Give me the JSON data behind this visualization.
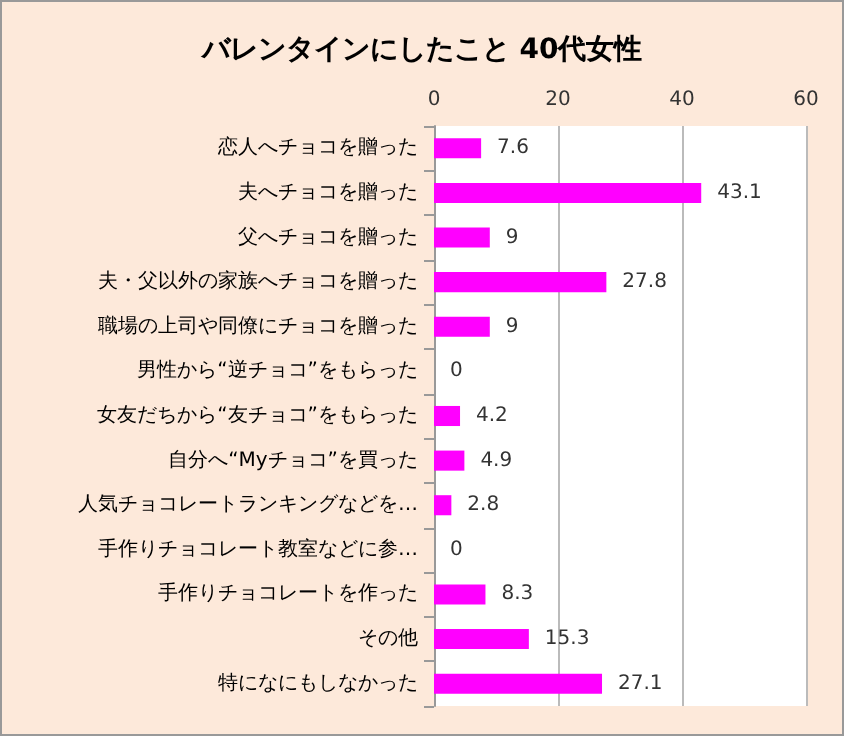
{
  "chart_data": {
    "type": "bar",
    "orientation": "horizontal",
    "title": "バレンタインにしたこと 40代女性",
    "categories": [
      "恋人へチョコを贈った",
      "夫へチョコを贈った",
      "父へチョコを贈った",
      "夫・父以外の家族へチョコを贈った",
      "職場の上司や同僚にチョコを贈った",
      "男性から“逆チョコ”をもらった",
      "女友だちから“友チョコ”をもらった",
      "自分へ“Myチョコ”を買った",
      "人気チョコレートランキングなどを…",
      "手作りチョコレート教室などに参…",
      "手作りチョコレートを作った",
      "その他",
      "特になにもしなかった"
    ],
    "values": [
      7.6,
      43.1,
      9,
      27.8,
      9,
      0,
      4.2,
      4.9,
      2.8,
      0,
      8.3,
      15.3,
      27.1
    ],
    "color": "#ff00ff",
    "xlim": [
      0,
      60
    ],
    "xticks": [
      0,
      20,
      40,
      60
    ],
    "grid": "x",
    "data_labels": true
  }
}
